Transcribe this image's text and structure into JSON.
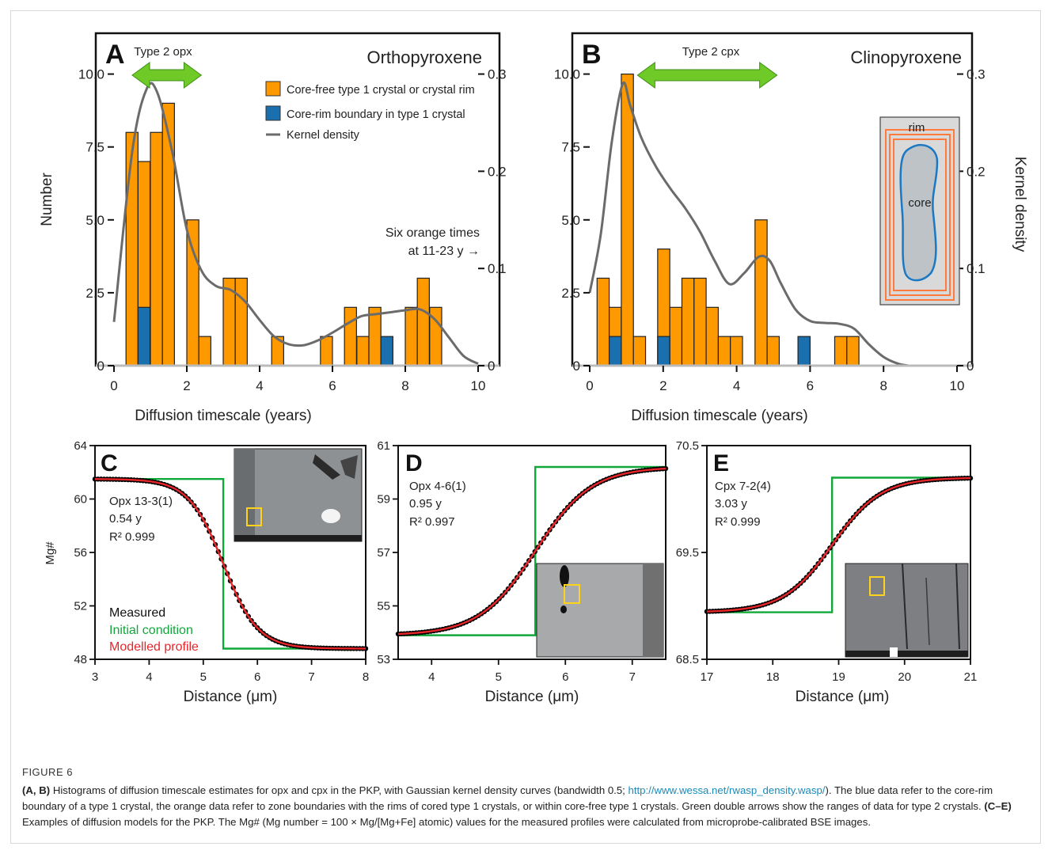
{
  "figure": {
    "label": "FIGURE 6",
    "caption": {
      "p1_bold": "(A, B)",
      "p1_text": " Histograms of diffusion timescale estimates for opx and cpx in the PKP, with Gaussian kernel density curves (bandwidth 0.5; ",
      "link": "http://www.wessa.net/rwasp_density.wasp/",
      "p2_text": "). The blue data refer to the core-rim boundary of a type 1 crystal, the orange data refer to zone boundaries with the rims of cored type 1 crystals, or within core-free type 1 crystals. Green double arrows show the ranges of data for type 2 crystals. ",
      "p2_bold": "(C–E)",
      "p3_text": " Examples of diffusion models for the PKP. The Mg# (Mg number = 100 × Mg/[Mg+Fe] atomic) values for the measured profiles were calculated from microprobe-calibrated BSE images."
    }
  },
  "colors": {
    "orange": "#ff9900",
    "blue": "#1a6fae",
    "kde": "#6b6b6b",
    "green": "#11a83a",
    "red": "#e8262a",
    "measured": "#000000",
    "arrow_green": "#6fca28"
  },
  "chart_data": [
    {
      "panel": "A",
      "type": "bar",
      "subtype": "histogram-with-kde",
      "title": "Orthopyroxene",
      "xlabel": "Diffusion timescale (years)",
      "ylabel": "Number",
      "y2label": "",
      "xlim": [
        0,
        10
      ],
      "ylim": [
        0,
        11.4
      ],
      "y2lim": [
        0,
        0.342
      ],
      "x_ticks": [
        "0",
        "2",
        "4",
        "6",
        "8",
        "10"
      ],
      "y_ticks": [
        "0",
        "2.5",
        "5.0",
        "7.5",
        "10.0"
      ],
      "y2_ticks": [
        "0",
        "0.1",
        "0.2",
        "0.3"
      ],
      "bin_width": 0.33,
      "series": [
        {
          "name": "Core-free type 1 crystal or crystal rim",
          "color": "#ff9900",
          "bins": [
            [
              0.33,
              8
            ],
            [
              0.66,
              7
            ],
            [
              1.0,
              8
            ],
            [
              1.33,
              9
            ],
            [
              2.0,
              5
            ],
            [
              2.33,
              1
            ],
            [
              3.0,
              3
            ],
            [
              3.33,
              3
            ],
            [
              4.33,
              1
            ],
            [
              5.67,
              1
            ],
            [
              6.33,
              2
            ],
            [
              6.67,
              1
            ],
            [
              7.0,
              2
            ],
            [
              8.0,
              2
            ],
            [
              8.33,
              3
            ],
            [
              8.67,
              2
            ]
          ]
        },
        {
          "name": "Core-rim boundary in type 1 crystal",
          "color": "#1a6fae",
          "bins": [
            [
              0.66,
              2
            ],
            [
              7.33,
              1
            ]
          ]
        }
      ],
      "kde": {
        "name": "Kernel density",
        "x": [
          0,
          0.5,
          0.9,
          1.2,
          1.6,
          2.0,
          2.4,
          2.8,
          3.2,
          3.6,
          4.0,
          4.4,
          4.8,
          5.2,
          5.6,
          6.0,
          6.4,
          6.8,
          7.2,
          7.6,
          8.0,
          8.4,
          8.8,
          9.2,
          9.6,
          10.0
        ],
        "y": [
          0.045,
          0.22,
          0.285,
          0.28,
          0.22,
          0.14,
          0.098,
          0.082,
          0.078,
          0.066,
          0.047,
          0.03,
          0.022,
          0.021,
          0.026,
          0.034,
          0.043,
          0.051,
          0.053,
          0.055,
          0.057,
          0.058,
          0.048,
          0.029,
          0.01,
          0.002
        ]
      },
      "legend": [
        "Core-free type 1 crystal or crystal rim",
        "Core-rim boundary in type 1 crystal",
        "Kernel density"
      ],
      "arrow": {
        "label": "Type 2 opx",
        "from": 0.5,
        "to": 2.4
      },
      "annotation": {
        "line1": "Six orange times",
        "line2": "at 11-23 y →"
      }
    },
    {
      "panel": "B",
      "type": "bar",
      "subtype": "histogram-with-kde",
      "title": "Clinopyroxene",
      "xlabel": "Diffusion timescale (years)",
      "ylabel": "",
      "y2label": "Kernel density",
      "xlim": [
        0,
        10
      ],
      "ylim": [
        0,
        11.4
      ],
      "y2lim": [
        0,
        0.342
      ],
      "x_ticks": [
        "0",
        "2",
        "4",
        "6",
        "8",
        "10"
      ],
      "y_ticks": [
        "0",
        "2.5",
        "5.0",
        "7.5",
        "10.0"
      ],
      "y2_ticks": [
        "0",
        "0.1",
        "0.2",
        "0.3"
      ],
      "bin_width": 0.33,
      "series": [
        {
          "name": "Core-free type 1 crystal or crystal rim",
          "color": "#ff9900",
          "bins": [
            [
              0.2,
              3
            ],
            [
              0.53,
              2
            ],
            [
              0.86,
              10
            ],
            [
              1.19,
              1
            ],
            [
              1.52,
              0
            ],
            [
              1.85,
              4
            ],
            [
              2.18,
              2
            ],
            [
              2.51,
              3
            ],
            [
              2.84,
              3
            ],
            [
              3.17,
              2
            ],
            [
              3.5,
              1
            ],
            [
              3.83,
              1
            ],
            [
              4.5,
              5
            ],
            [
              4.83,
              1
            ],
            [
              6.67,
              1
            ],
            [
              7.0,
              1
            ]
          ]
        },
        {
          "name": "Core-rim boundary in type 1 crystal",
          "color": "#1a6fae",
          "bins": [
            [
              0.53,
              1
            ],
            [
              1.85,
              1
            ],
            [
              5.67,
              1
            ]
          ]
        }
      ],
      "kde": {
        "name": "Kernel density",
        "x": [
          0,
          0.3,
          0.6,
          0.9,
          1.1,
          1.4,
          1.8,
          2.2,
          2.6,
          3.0,
          3.4,
          3.8,
          4.2,
          4.6,
          4.9,
          5.2,
          5.6,
          6.0,
          6.4,
          6.8,
          7.2,
          7.6,
          8.0,
          8.4,
          8.7
        ],
        "y": [
          0.075,
          0.135,
          0.23,
          0.29,
          0.268,
          0.235,
          0.205,
          0.182,
          0.162,
          0.138,
          0.108,
          0.084,
          0.095,
          0.112,
          0.108,
          0.085,
          0.058,
          0.046,
          0.044,
          0.043,
          0.038,
          0.022,
          0.009,
          0.002,
          0.0
        ]
      },
      "arrow": {
        "label": "Type 2 cpx",
        "from": 1.3,
        "to": 5.1
      },
      "inset": {
        "rim": "rim",
        "core": "core"
      }
    },
    {
      "panel": "C",
      "type": "line",
      "xlabel": "Distance (μm)",
      "ylabel": "Mg#",
      "xlim": [
        3,
        8
      ],
      "ylim": [
        48,
        64
      ],
      "x_ticks": [
        "3",
        "4",
        "5",
        "6",
        "7",
        "8"
      ],
      "y_ticks": [
        "48",
        "52",
        "56",
        "60",
        "64"
      ],
      "sample": "Opx 13-3(1)",
      "time": "0.54 y",
      "r2": "R² 0.999",
      "legend": [
        "Measured",
        "Initial condition",
        "Modelled profile"
      ],
      "initial_condition": {
        "x": [
          3,
          5.37,
          5.37,
          8
        ],
        "y": [
          61.5,
          61.5,
          48.8,
          48.8
        ]
      },
      "profile": {
        "high": 61.5,
        "low": 48.8,
        "center": 5.37,
        "width": 0.32
      }
    },
    {
      "panel": "D",
      "type": "line",
      "xlabel": "Distance (μm)",
      "ylabel": "",
      "xlim": [
        3.5,
        7.5
      ],
      "ylim": [
        53,
        61
      ],
      "x_ticks": [
        "4",
        "5",
        "6",
        "7"
      ],
      "y_ticks": [
        "53",
        "55",
        "57",
        "59",
        "61"
      ],
      "sample": "Opx 4-6(1)",
      "time": "0.95 y",
      "r2": "R² 0.997",
      "initial_condition": {
        "x": [
          3.5,
          5.55,
          5.55,
          7.5
        ],
        "y": [
          53.9,
          53.9,
          60.2,
          60.2
        ]
      },
      "profile": {
        "high": 60.2,
        "low": 53.9,
        "center": 5.55,
        "width": 0.42
      }
    },
    {
      "panel": "E",
      "type": "line",
      "xlabel": "Distance (μm)",
      "ylabel": "",
      "xlim": [
        17,
        21
      ],
      "ylim": [
        68.5,
        70.5
      ],
      "x_ticks": [
        "17",
        "18",
        "19",
        "20",
        "21"
      ],
      "y_ticks": [
        "68.5",
        "69.5",
        "70.5"
      ],
      "sample": "Cpx 7-2(4)",
      "time": "3.03 y",
      "r2": "R² 0.999",
      "initial_condition": {
        "x": [
          17,
          18.9,
          18.9,
          21
        ],
        "y": [
          68.94,
          68.94,
          70.2,
          70.2
        ]
      },
      "profile": {
        "high": 70.2,
        "low": 68.94,
        "center": 18.9,
        "width": 0.37
      }
    }
  ]
}
